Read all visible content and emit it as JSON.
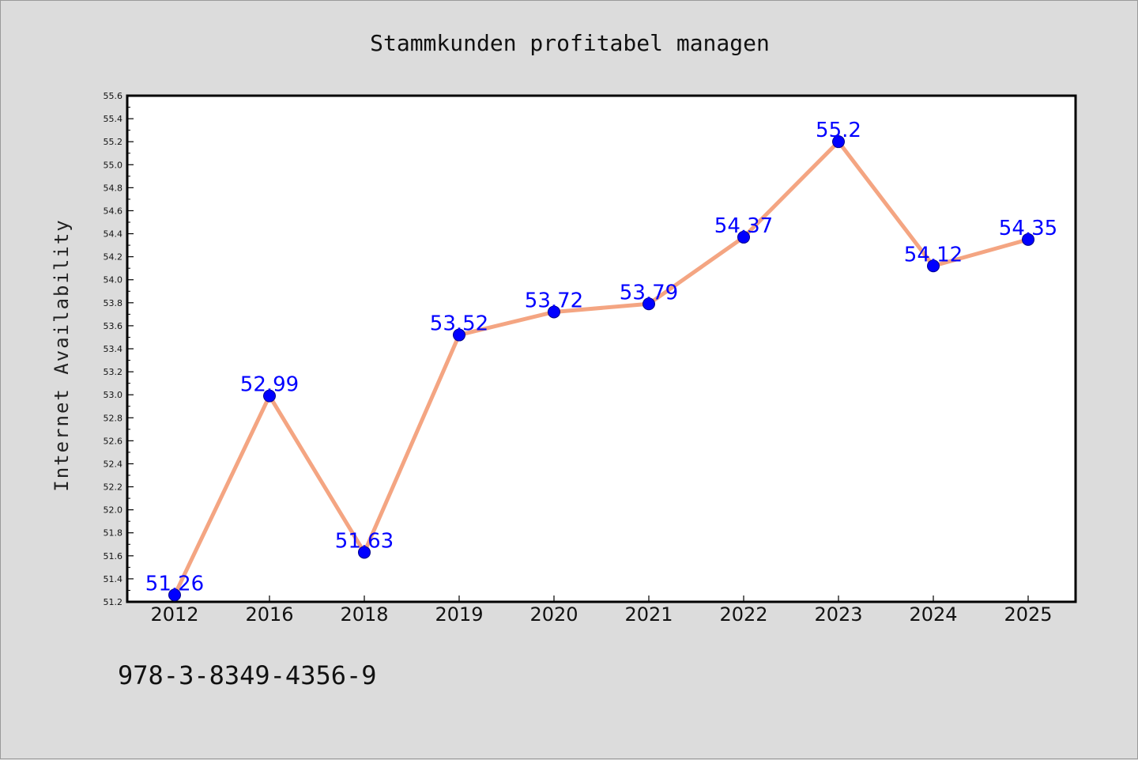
{
  "chart_data": {
    "type": "line",
    "title": "Stammkunden profitabel managen",
    "ylabel": "Internet Availability",
    "xlabel": "",
    "categories": [
      "2012",
      "2016",
      "2018",
      "2019",
      "2020",
      "2021",
      "2022",
      "2023",
      "2024",
      "2025"
    ],
    "series": [
      {
        "values": [
          51.26,
          52.99,
          51.63,
          53.52,
          53.72,
          53.79,
          54.37,
          55.2,
          54.12,
          54.35
        ],
        "labels": [
          "51.26",
          "52.99",
          "51.63",
          "53.52",
          "53.72",
          "53.79",
          "54.37",
          "55.2",
          "54.12",
          "54.35"
        ],
        "line_color": "#f4a582",
        "marker_color": "#0000ff"
      }
    ],
    "ylim": [
      51.2,
      55.6
    ],
    "yticks": [
      "51.2",
      "51.4",
      "51.6",
      "51.8",
      "52.0",
      "52.2",
      "52.4",
      "52.6",
      "52.8",
      "53.0",
      "53.2",
      "53.4",
      "53.6",
      "53.8",
      "54.0",
      "54.2",
      "54.4",
      "54.6",
      "54.8",
      "55.0",
      "55.2",
      "55.4",
      "55.6"
    ],
    "grid": false,
    "legend": "none"
  },
  "footer": {
    "isbn": "978-3-8349-4356-9"
  },
  "colors": {
    "background": "#dcdcdc",
    "plot_background": "#ffffff",
    "label": "#0000ff"
  }
}
